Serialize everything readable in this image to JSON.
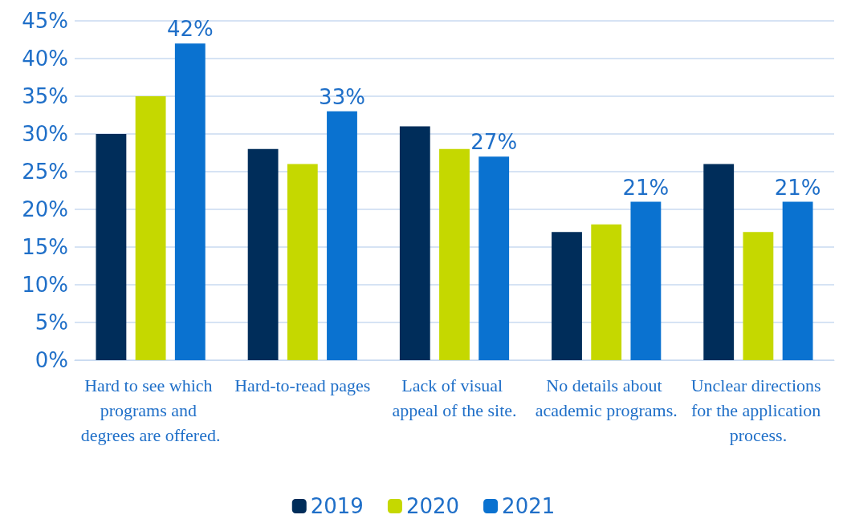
{
  "chart_data": {
    "type": "bar",
    "categories": [
      "Hard to see which programs and degrees are offered.",
      "Hard-to-read pages",
      "Lack of visual appeal of the site.",
      "No details about academic programs.",
      "Unclear directions for the application process."
    ],
    "series": [
      {
        "name": "2019",
        "color": "#002d5a",
        "values": [
          30,
          28,
          31,
          17,
          26
        ]
      },
      {
        "name": "2020",
        "color": "#c5d800",
        "values": [
          35,
          26,
          28,
          18,
          17
        ]
      },
      {
        "name": "2021",
        "color": "#0a72d0",
        "values": [
          42,
          33,
          27,
          21,
          21
        ],
        "value_labels": [
          "42%",
          "33%",
          "27%",
          "21%",
          "21%"
        ]
      }
    ],
    "ylim": [
      0,
      45
    ],
    "yticks": [
      {
        "value": 0,
        "label": "0%"
      },
      {
        "value": 5,
        "label": "5%"
      },
      {
        "value": 10,
        "label": "10%"
      },
      {
        "value": 15,
        "label": "15%"
      },
      {
        "value": 20,
        "label": "20%"
      },
      {
        "value": 25,
        "label": "25%"
      },
      {
        "value": 30,
        "label": "30%"
      },
      {
        "value": 35,
        "label": "35%"
      },
      {
        "value": 40,
        "label": "40%"
      },
      {
        "value": 45,
        "label": "45%"
      }
    ],
    "grid": "y",
    "legend": "bottom"
  }
}
